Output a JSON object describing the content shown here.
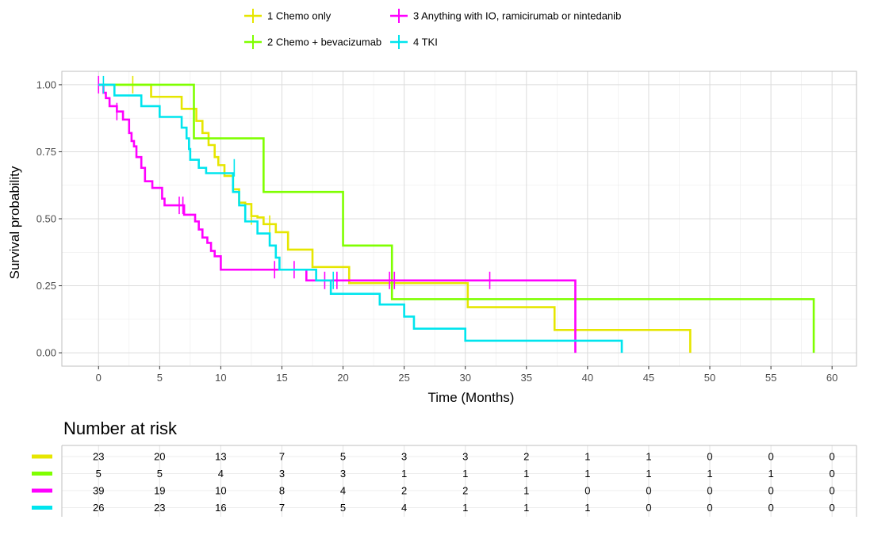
{
  "chart_data": {
    "type": "line",
    "subtype": "kaplan-meier",
    "xlabel": "Time (Months)",
    "ylabel": "Survival probability",
    "xlim": [
      -3,
      62
    ],
    "ylim": [
      -0.05,
      1.05
    ],
    "xticks": [
      "0",
      "5",
      "10",
      "15",
      "20",
      "25",
      "30",
      "35",
      "40",
      "45",
      "50",
      "55",
      "60"
    ],
    "yticks": [
      "0.00",
      "0.25",
      "0.50",
      "0.75",
      "1.00"
    ],
    "grid": true,
    "legend_position": "top",
    "legend": [
      {
        "label": "1 Chemo only",
        "color": "#e6e600"
      },
      {
        "label": "3 Anything with IO, ramicirumab or nintedanib",
        "color": "#ff00ff"
      },
      {
        "label": "2 Chemo + bevacizumab",
        "color": "#7fff00"
      },
      {
        "label": "4 TKI",
        "color": "#00e5ee"
      }
    ],
    "series": [
      {
        "name": "1 Chemo only",
        "color": "#e6e600",
        "steps": [
          [
            0,
            1.0
          ],
          [
            4.3,
            0.955
          ],
          [
            6.8,
            0.91
          ],
          [
            8,
            0.865
          ],
          [
            8.5,
            0.82
          ],
          [
            9,
            0.775
          ],
          [
            9.5,
            0.73
          ],
          [
            9.8,
            0.7
          ],
          [
            10.3,
            0.66
          ],
          [
            11,
            0.61
          ],
          [
            11.5,
            0.56
          ],
          [
            12,
            0.555
          ],
          [
            12.5,
            0.51
          ],
          [
            13,
            0.505
          ],
          [
            13.5,
            0.48
          ],
          [
            14.5,
            0.45
          ],
          [
            15.5,
            0.385
          ],
          [
            17.5,
            0.32
          ],
          [
            20.5,
            0.26
          ],
          [
            30.2,
            0.17
          ],
          [
            37.3,
            0.085
          ],
          [
            48.4,
            0.0
          ]
        ],
        "censors": [
          [
            2.8,
            1.0
          ],
          [
            12.5,
            0.51
          ],
          [
            14,
            0.48
          ]
        ]
      },
      {
        "name": "2 Chemo + bevacizumab",
        "color": "#7fff00",
        "steps": [
          [
            0,
            1.0
          ],
          [
            7.8,
            0.8
          ],
          [
            13.5,
            0.6
          ],
          [
            20,
            0.4
          ],
          [
            24,
            0.2
          ],
          [
            58.5,
            0.0
          ]
        ],
        "censors": []
      },
      {
        "name": "3 Anything with IO, ramicirumab or nintedanib",
        "color": "#ff00ff",
        "steps": [
          [
            0,
            1.0
          ],
          [
            0.4,
            0.97
          ],
          [
            0.6,
            0.95
          ],
          [
            0.9,
            0.92
          ],
          [
            1.5,
            0.9
          ],
          [
            2.0,
            0.87
          ],
          [
            2.5,
            0.82
          ],
          [
            2.7,
            0.79
          ],
          [
            2.9,
            0.77
          ],
          [
            3.1,
            0.73
          ],
          [
            3.5,
            0.69
          ],
          [
            3.8,
            0.64
          ],
          [
            4.4,
            0.615
          ],
          [
            5.2,
            0.575
          ],
          [
            5.4,
            0.55
          ],
          [
            7.0,
            0.515
          ],
          [
            7.9,
            0.49
          ],
          [
            8.2,
            0.46
          ],
          [
            8.5,
            0.43
          ],
          [
            8.9,
            0.41
          ],
          [
            9.2,
            0.38
          ],
          [
            9.5,
            0.36
          ],
          [
            10,
            0.31
          ],
          [
            17,
            0.27
          ],
          [
            39,
            0.0
          ]
        ],
        "censors": [
          [
            0,
            1.0
          ],
          [
            1.5,
            0.9
          ],
          [
            6.6,
            0.55
          ],
          [
            6.9,
            0.55
          ],
          [
            14.4,
            0.31
          ],
          [
            16,
            0.31
          ],
          [
            18.5,
            0.27
          ],
          [
            19.5,
            0.27
          ],
          [
            23.8,
            0.27
          ],
          [
            24.2,
            0.27
          ],
          [
            32,
            0.27
          ]
        ]
      },
      {
        "name": "4 TKI",
        "color": "#00e5ee",
        "steps": [
          [
            0,
            1.0
          ],
          [
            1.3,
            0.96
          ],
          [
            3.5,
            0.92
          ],
          [
            5,
            0.88
          ],
          [
            6.8,
            0.84
          ],
          [
            7.2,
            0.8
          ],
          [
            7.4,
            0.76
          ],
          [
            7.5,
            0.72
          ],
          [
            8.2,
            0.69
          ],
          [
            8.8,
            0.67
          ],
          [
            11,
            0.6
          ],
          [
            11.5,
            0.55
          ],
          [
            12,
            0.49
          ],
          [
            13,
            0.445
          ],
          [
            14,
            0.4
          ],
          [
            14.5,
            0.355
          ],
          [
            14.8,
            0.31
          ],
          [
            17.8,
            0.27
          ],
          [
            19,
            0.22
          ],
          [
            23,
            0.18
          ],
          [
            25,
            0.135
          ],
          [
            25.8,
            0.09
          ],
          [
            30,
            0.045
          ],
          [
            42.8,
            0.0
          ]
        ],
        "censors": [
          [
            0.4,
            1.0
          ],
          [
            11.1,
            0.69
          ],
          [
            19.2,
            0.27
          ]
        ]
      }
    ],
    "risk_table": {
      "title": "Number at risk",
      "times": [
        0,
        5,
        10,
        15,
        20,
        25,
        30,
        35,
        40,
        45,
        50,
        55,
        60
      ],
      "rows": [
        {
          "color": "#e6e600",
          "values": [
            "23",
            "20",
            "13",
            "7",
            "5",
            "3",
            "3",
            "2",
            "1",
            "1",
            "0",
            "0",
            "0"
          ]
        },
        {
          "color": "#7fff00",
          "values": [
            "5",
            "5",
            "4",
            "3",
            "3",
            "1",
            "1",
            "1",
            "1",
            "1",
            "1",
            "1",
            "0"
          ]
        },
        {
          "color": "#ff00ff",
          "values": [
            "39",
            "19",
            "10",
            "8",
            "4",
            "2",
            "2",
            "1",
            "0",
            "0",
            "0",
            "0",
            "0"
          ]
        },
        {
          "color": "#00e5ee",
          "values": [
            "26",
            "23",
            "16",
            "7",
            "5",
            "4",
            "1",
            "1",
            "1",
            "0",
            "0",
            "0",
            "0"
          ]
        }
      ]
    }
  }
}
